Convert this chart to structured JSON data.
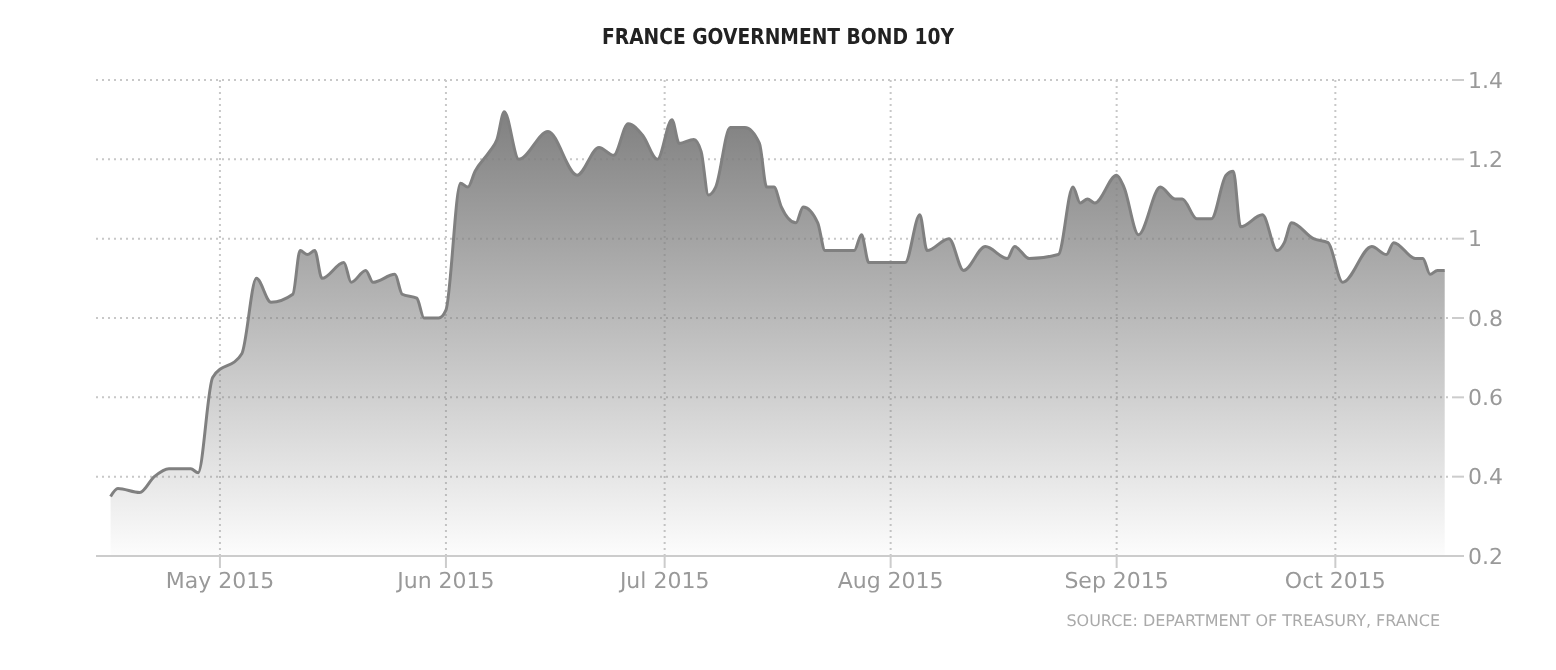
{
  "chart_data": {
    "type": "area",
    "title": "FRANCE GOVERNMENT BOND 10Y",
    "x": [
      "2015-04-16",
      "2015-04-17",
      "2015-04-20",
      "2015-04-22",
      "2015-04-24",
      "2015-04-27",
      "2015-04-28",
      "2015-04-30",
      "2015-05-04",
      "2015-05-06",
      "2015-05-08",
      "2015-05-11",
      "2015-05-12",
      "2015-05-13",
      "2015-05-14",
      "2015-05-15",
      "2015-05-18",
      "2015-05-19",
      "2015-05-21",
      "2015-05-22",
      "2015-05-25",
      "2015-05-26",
      "2015-05-28",
      "2015-05-29",
      "2015-05-31",
      "2015-06-01",
      "2015-06-03",
      "2015-06-04",
      "2015-06-05",
      "2015-06-07",
      "2015-06-08",
      "2015-06-09",
      "2015-06-11",
      "2015-06-15",
      "2015-06-19",
      "2015-06-22",
      "2015-06-24",
      "2015-06-26",
      "2015-06-28",
      "2015-06-30",
      "2015-07-02",
      "2015-07-03",
      "2015-07-05",
      "2015-07-06",
      "2015-07-07",
      "2015-07-08",
      "2015-07-10",
      "2015-07-12",
      "2015-07-14",
      "2015-07-15",
      "2015-07-16",
      "2015-07-17",
      "2015-07-19",
      "2015-07-20",
      "2015-07-22",
      "2015-07-23",
      "2015-07-27",
      "2015-07-28",
      "2015-07-29",
      "2015-08-03",
      "2015-08-05",
      "2015-08-06",
      "2015-08-09",
      "2015-08-11",
      "2015-08-14",
      "2015-08-17",
      "2015-08-18",
      "2015-08-20",
      "2015-08-24",
      "2015-08-26",
      "2015-08-27",
      "2015-08-28",
      "2015-08-29",
      "2015-09-01",
      "2015-09-02",
      "2015-09-04",
      "2015-09-07",
      "2015-09-09",
      "2015-09-10",
      "2015-09-12",
      "2015-09-14",
      "2015-09-16",
      "2015-09-17",
      "2015-09-18",
      "2015-09-21",
      "2015-09-23",
      "2015-09-24",
      "2015-09-25",
      "2015-09-28",
      "2015-09-30",
      "2015-10-02",
      "2015-10-06",
      "2015-10-08",
      "2015-10-09",
      "2015-10-12",
      "2015-10-13",
      "2015-10-14",
      "2015-10-15",
      "2015-10-16"
    ],
    "series": [
      {
        "color": "#808080",
        "values": [
          0.35,
          0.37,
          0.36,
          0.4,
          0.42,
          0.42,
          0.41,
          0.65,
          0.71,
          0.9,
          0.84,
          0.86,
          0.97,
          0.96,
          0.97,
          0.9,
          0.94,
          0.89,
          0.92,
          0.89,
          0.91,
          0.86,
          0.85,
          0.8,
          0.8,
          0.82,
          1.14,
          1.13,
          1.17,
          1.22,
          1.25,
          1.32,
          1.2,
          1.27,
          1.16,
          1.23,
          1.21,
          1.29,
          1.26,
          1.2,
          1.3,
          1.24,
          1.25,
          1.22,
          1.11,
          1.13,
          1.28,
          1.28,
          1.24,
          1.13,
          1.13,
          1.08,
          1.04,
          1.08,
          1.04,
          0.97,
          0.97,
          1.01,
          0.94,
          0.94,
          1.06,
          0.97,
          1.0,
          0.92,
          0.98,
          0.95,
          0.98,
          0.95,
          0.96,
          1.13,
          1.09,
          1.1,
          1.09,
          1.16,
          1.13,
          1.01,
          1.13,
          1.1,
          1.1,
          1.05,
          1.05,
          1.16,
          1.17,
          1.03,
          1.06,
          0.97,
          0.99,
          1.04,
          1.0,
          0.99,
          0.89,
          0.98,
          0.96,
          0.99,
          0.95,
          0.95,
          0.91,
          0.92,
          0.92
        ]
      }
    ],
    "xlim": [
      "2015-04-14",
      "2015-10-17"
    ],
    "xticks": [
      {
        "value": "2015-05-01",
        "label": "May 2015"
      },
      {
        "value": "2015-06-01",
        "label": "Jun 2015"
      },
      {
        "value": "2015-07-01",
        "label": "Jul 2015"
      },
      {
        "value": "2015-08-01",
        "label": "Aug 2015"
      },
      {
        "value": "2015-09-01",
        "label": "Sep 2015"
      },
      {
        "value": "2015-10-01",
        "label": "Oct 2015"
      }
    ],
    "ylim": [
      0.2,
      1.4
    ],
    "yticks": [
      0.2,
      0.4,
      0.6,
      0.8,
      1,
      1.2,
      1.4
    ],
    "grid": true,
    "annotations": [
      "SOURCE: DEPARTMENT OF TREASURY, FRANCE"
    ]
  }
}
